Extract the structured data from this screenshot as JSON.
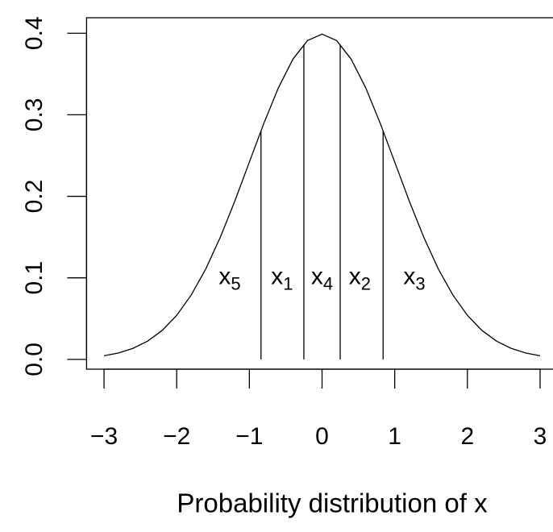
{
  "chart_data": {
    "type": "line",
    "x_label": "Probability distribution of x",
    "x": [
      -3.0,
      -2.8,
      -2.6,
      -2.4,
      -2.2,
      -2.0,
      -1.8,
      -1.6,
      -1.4,
      -1.2,
      -1.0,
      -0.8,
      -0.6,
      -0.4,
      -0.2,
      0.0,
      0.2,
      0.4,
      0.6,
      0.8,
      1.0,
      1.2,
      1.4,
      1.6,
      1.8,
      2.0,
      2.2,
      2.4,
      2.6,
      2.8,
      3.0
    ],
    "values": [
      0.0044,
      0.0079,
      0.0136,
      0.0224,
      0.0355,
      0.054,
      0.079,
      0.1109,
      0.1497,
      0.1942,
      0.242,
      0.2897,
      0.3332,
      0.3683,
      0.391,
      0.3989,
      0.391,
      0.3683,
      0.3332,
      0.2897,
      0.242,
      0.1942,
      0.1497,
      0.1109,
      0.079,
      0.054,
      0.0355,
      0.0224,
      0.0136,
      0.0079,
      0.0044
    ],
    "color": "#000000",
    "segments": {
      "x": [
        -0.84,
        -0.25,
        0.25,
        0.84
      ],
      "values": [
        0.28,
        0.386,
        0.386,
        0.28
      ]
    },
    "annotations": [
      {
        "text": "x",
        "sub": "5",
        "x": -1.27,
        "y": 0.1
      },
      {
        "text": "x",
        "sub": "1",
        "x": -0.55,
        "y": 0.1
      },
      {
        "text": "x",
        "sub": "4",
        "x": 0.0,
        "y": 0.1
      },
      {
        "text": "x",
        "sub": "2",
        "x": 0.52,
        "y": 0.1
      },
      {
        "text": "x",
        "sub": "3",
        "x": 1.27,
        "y": 0.1
      }
    ],
    "xlim": [
      -3.24,
      3.24
    ],
    "ylim": [
      -0.012,
      0.419
    ],
    "xticks": [
      {
        "value": -3,
        "label": "−3"
      },
      {
        "value": -2,
        "label": "−2"
      },
      {
        "value": -1,
        "label": "−1"
      },
      0,
      1,
      2,
      3
    ],
    "yticks": [
      {
        "value": 0,
        "label": "0.0"
      },
      0.1,
      0.2,
      0.3,
      0.4
    ]
  }
}
